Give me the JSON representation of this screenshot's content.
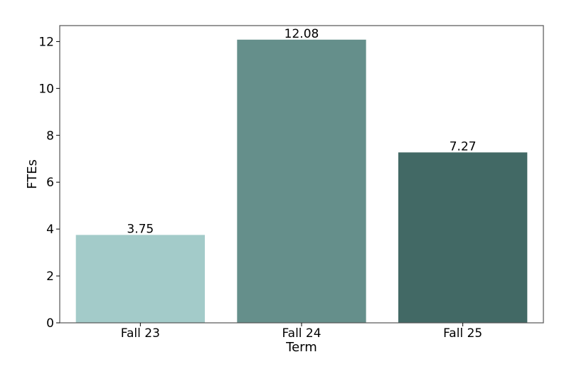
{
  "chart_data": {
    "type": "bar",
    "title": "",
    "xlabel": "Term",
    "ylabel": "FTEs",
    "categories": [
      "Fall 23",
      "Fall 24",
      "Fall 25"
    ],
    "values": [
      3.75,
      12.08,
      7.27
    ],
    "value_labels": [
      "3.75",
      "12.08",
      "7.27"
    ],
    "bar_colors": [
      "#a3cbc9",
      "#658f8b",
      "#426965"
    ],
    "ylim": [
      0,
      12.68
    ],
    "yticks": [
      0,
      2,
      4,
      6,
      8,
      10,
      12
    ],
    "grid": false,
    "legend": "none"
  }
}
